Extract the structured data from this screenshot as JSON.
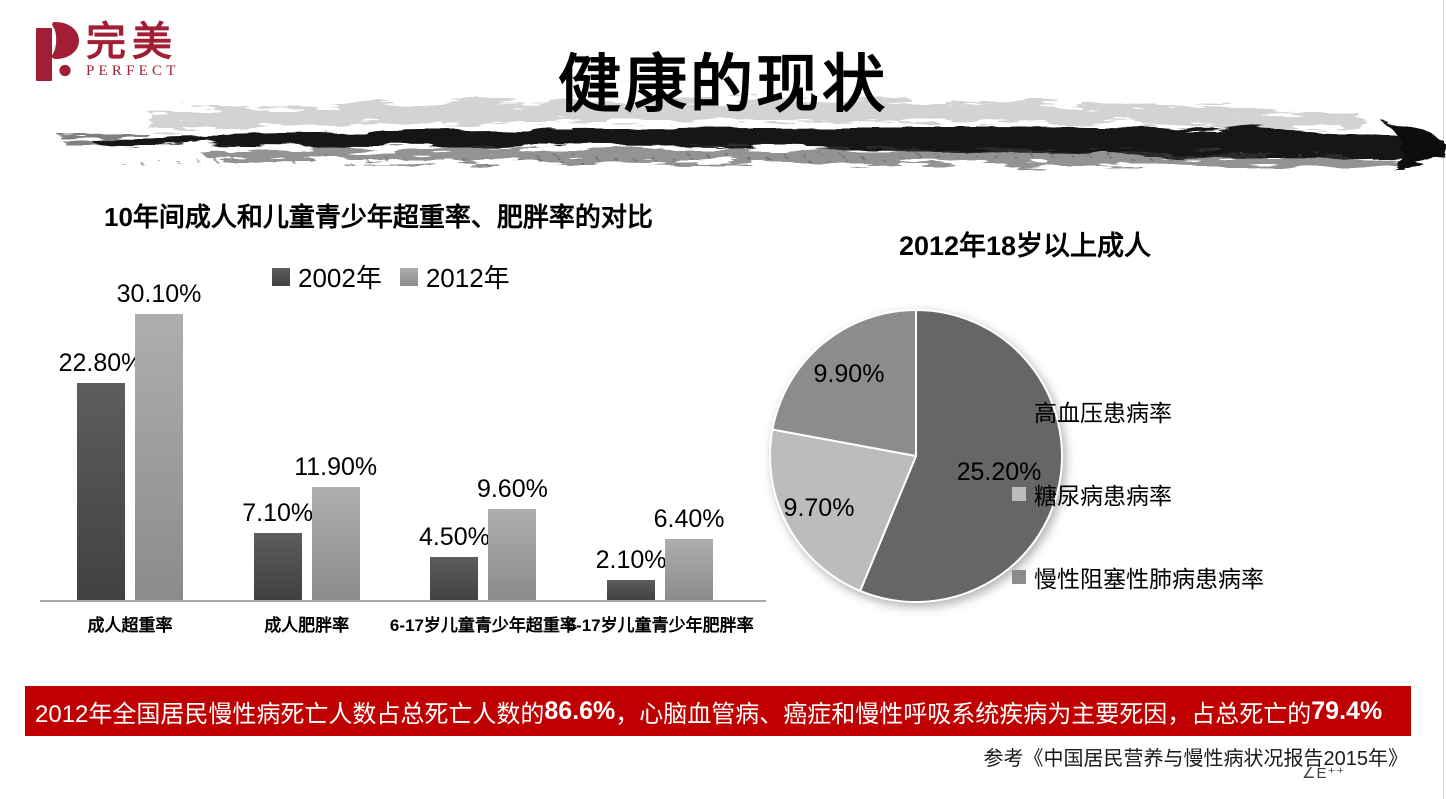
{
  "logo": {
    "cn": "完美",
    "en": "PERFECT",
    "color": "#a21e35"
  },
  "title": "健康的现状",
  "banner": {
    "part1": "2012年全国居民慢性病死亡人数占总死亡人数的",
    "pct1": "86.6%",
    "part2": "，心脑血管病、癌症和慢性呼吸系统疾病为主要死因，占总死亡的",
    "pct2": "79.4%",
    "background": "#c00000"
  },
  "reference": "参考《中国居民营养与慢性病状况报告2015年》",
  "watermark": "∠E⁺⁺",
  "chart_data": [
    {
      "type": "bar",
      "title": "10年间成人和儿童青少年超重率、肥胖率的对比",
      "categories": [
        "成人超重率",
        "成人肥胖率",
        "6-17岁儿童青少年超重率",
        "6-17岁儿童青少年肥胖率"
      ],
      "series": [
        {
          "name": "2002年",
          "values": [
            22.8,
            7.1,
            4.5,
            2.1
          ],
          "labels": [
            "22.80%",
            "7.10%",
            "4.50%",
            "2.10%"
          ],
          "color_top": "#5d5d5d",
          "color_bottom": "#414141"
        },
        {
          "name": "2012年",
          "values": [
            30.1,
            11.9,
            9.6,
            6.4
          ],
          "labels": [
            "30.10%",
            "11.90%",
            "9.60%",
            "6.40%"
          ],
          "color_top": "#aeaeae",
          "color_bottom": "#8b8b8b"
        }
      ],
      "ylim": [
        0,
        32
      ],
      "grid": false,
      "data_labels": true,
      "legend_position": "top"
    },
    {
      "type": "pie",
      "title": "2012年18岁以上成人",
      "slices": [
        {
          "label": "高血压患病率",
          "value": 25.2,
          "display": "25.20%",
          "color": "#666666"
        },
        {
          "label": "糖尿病患病率",
          "value": 9.7,
          "display": "9.70%",
          "color": "#bcbcbc"
        },
        {
          "label": "慢性阻塞性肺病患病率",
          "value": 9.9,
          "display": "9.90%",
          "color": "#8c8c8c"
        }
      ],
      "start_angle_deg": 0,
      "direction": "clockwise",
      "legend_position": "right"
    }
  ]
}
